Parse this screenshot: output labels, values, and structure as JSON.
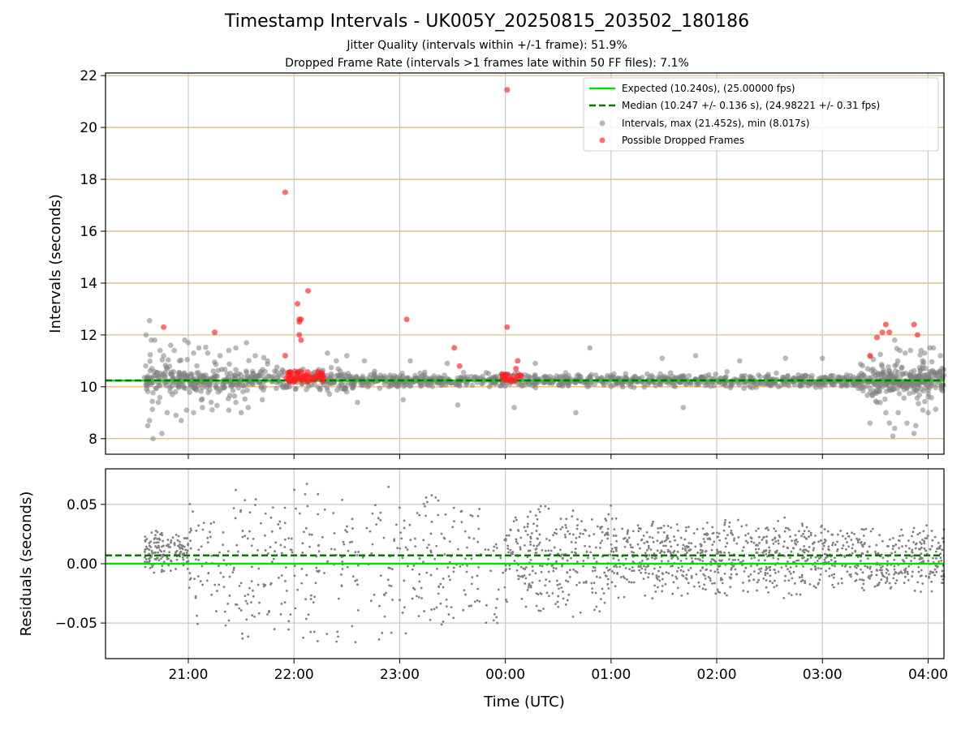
{
  "title": "Timestamp Intervals - UK005Y_20250815_203502_180186",
  "subtitle1": "Jitter Quality (intervals within +/-1 frame): 51.9%",
  "subtitle2": "Dropped Frame Rate (intervals >1 frames late within 50 FF files): 7.1%",
  "colors": {
    "expected": "#00e000",
    "median": "#007a00",
    "intervals": "#808080",
    "dropped": "#ff2020",
    "hgrid_top": "#d4bc6a",
    "grid": "#c8c8c8"
  },
  "chart_data": [
    {
      "type": "scatter",
      "ylabel": "Intervals (seconds)",
      "xlim": [
        "20:13",
        "04:09"
      ],
      "ylim": [
        7.4,
        22.1
      ],
      "yticks": [
        "8",
        "10",
        "12",
        "14",
        "16",
        "18",
        "20",
        "22"
      ],
      "xticks": [
        "21:00",
        "22:00",
        "23:00",
        "00:00",
        "01:00",
        "02:00",
        "03:00",
        "04:00"
      ],
      "expected_value": 10.24,
      "median_value": 10.247,
      "legend": {
        "expected": "Expected (10.240s), (25.00000 fps)",
        "median": "Median (10.247 +/- 0.136 s), (24.98221 +/- 0.31 fps)",
        "intervals": "Intervals, max (21.452s), min (8.017s)",
        "dropped": "Possible Dropped Frames"
      },
      "data_span": [
        "20:35",
        "04:09"
      ],
      "dropped_frames": [
        {
          "t": "20:46",
          "y": 12.3
        },
        {
          "t": "21:15",
          "y": 12.1
        },
        {
          "t": "21:55",
          "y": 17.5
        },
        {
          "t": "21:55",
          "y": 11.2
        },
        {
          "t": "22:02",
          "y": 13.2
        },
        {
          "t": "22:03",
          "y": 12.6
        },
        {
          "t": "22:04",
          "y": 12.6
        },
        {
          "t": "22:03",
          "y": 12.5
        },
        {
          "t": "22:03",
          "y": 12.0
        },
        {
          "t": "22:04",
          "y": 11.8
        },
        {
          "t": "22:08",
          "y": 13.7
        },
        {
          "t": "23:04",
          "y": 12.6
        },
        {
          "t": "23:31",
          "y": 11.5
        },
        {
          "t": "23:34",
          "y": 10.8
        },
        {
          "t": "00:01",
          "y": 21.45
        },
        {
          "t": "00:01",
          "y": 12.3
        },
        {
          "t": "00:07",
          "y": 11.0
        },
        {
          "t": "00:06",
          "y": 10.7
        },
        {
          "t": "03:27",
          "y": 11.2
        },
        {
          "t": "03:31",
          "y": 11.9
        },
        {
          "t": "03:34",
          "y": 12.1
        },
        {
          "t": "03:36",
          "y": 12.4
        },
        {
          "t": "03:38",
          "y": 12.1
        },
        {
          "t": "03:52",
          "y": 12.4
        },
        {
          "t": "03:54",
          "y": 12.0
        }
      ],
      "dropped_clusters": [
        {
          "start": "21:55",
          "end": "22:17",
          "ymin": 10.2,
          "ymax": 10.6,
          "count": 60
        },
        {
          "start": "23:58",
          "end": "00:10",
          "ymin": 10.2,
          "ymax": 10.5,
          "count": 22
        }
      ],
      "interval_outliers": [
        {
          "t": "20:36",
          "y": 12.0
        },
        {
          "t": "20:38",
          "y": 12.55
        },
        {
          "t": "20:39",
          "y": 11.8
        },
        {
          "t": "20:41",
          "y": 11.8
        },
        {
          "t": "20:44",
          "y": 11.4
        },
        {
          "t": "20:46",
          "y": 11.2
        },
        {
          "t": "20:50",
          "y": 11.6
        },
        {
          "t": "20:52",
          "y": 11.4
        },
        {
          "t": "20:55",
          "y": 11.0
        },
        {
          "t": "20:58",
          "y": 11.8
        },
        {
          "t": "21:00",
          "y": 11.7
        },
        {
          "t": "21:03",
          "y": 11.3
        },
        {
          "t": "21:06",
          "y": 11.5
        },
        {
          "t": "21:11",
          "y": 11.3
        },
        {
          "t": "21:18",
          "y": 11.2
        },
        {
          "t": "21:23",
          "y": 11.4
        },
        {
          "t": "21:27",
          "y": 11.5
        },
        {
          "t": "21:33",
          "y": 11.7
        },
        {
          "t": "21:38",
          "y": 11.2
        },
        {
          "t": "21:45",
          "y": 11.0
        },
        {
          "t": "22:19",
          "y": 11.3
        },
        {
          "t": "22:24",
          "y": 11.0
        },
        {
          "t": "22:30",
          "y": 11.2
        },
        {
          "t": "22:40",
          "y": 11.0
        },
        {
          "t": "23:06",
          "y": 11.0
        },
        {
          "t": "23:27",
          "y": 10.9
        },
        {
          "t": "00:17",
          "y": 10.9
        },
        {
          "t": "00:48",
          "y": 11.5
        },
        {
          "t": "01:29",
          "y": 11.1
        },
        {
          "t": "01:48",
          "y": 11.2
        },
        {
          "t": "02:13",
          "y": 11.0
        },
        {
          "t": "02:39",
          "y": 11.1
        },
        {
          "t": "03:00",
          "y": 11.1
        },
        {
          "t": "03:41",
          "y": 11.8
        },
        {
          "t": "03:44",
          "y": 11.4
        },
        {
          "t": "03:47",
          "y": 11.3
        },
        {
          "t": "03:50",
          "y": 11.4
        },
        {
          "t": "03:56",
          "y": 11.4
        },
        {
          "t": "03:58",
          "y": 11.3
        },
        {
          "t": "04:01",
          "y": 11.5
        },
        {
          "t": "04:03",
          "y": 11.5
        },
        {
          "t": "04:07",
          "y": 11.2
        },
        {
          "t": "20:37",
          "y": 8.5
        },
        {
          "t": "20:38",
          "y": 8.7
        },
        {
          "t": "20:40",
          "y": 8.0
        },
        {
          "t": "20:43",
          "y": 9.4
        },
        {
          "t": "20:45",
          "y": 8.2
        },
        {
          "t": "20:48",
          "y": 9.0
        },
        {
          "t": "20:51",
          "y": 9.7
        },
        {
          "t": "20:53",
          "y": 8.9
        },
        {
          "t": "20:56",
          "y": 8.7
        },
        {
          "t": "20:59",
          "y": 9.1
        },
        {
          "t": "21:03",
          "y": 9.0
        },
        {
          "t": "21:08",
          "y": 9.2
        },
        {
          "t": "21:13",
          "y": 9.4
        },
        {
          "t": "21:17",
          "y": 9.8
        },
        {
          "t": "21:23",
          "y": 9.1
        },
        {
          "t": "21:27",
          "y": 9.4
        },
        {
          "t": "21:30",
          "y": 9.0
        },
        {
          "t": "21:34",
          "y": 9.2
        },
        {
          "t": "21:42",
          "y": 9.5
        },
        {
          "t": "22:36",
          "y": 9.4
        },
        {
          "t": "23:02",
          "y": 9.5
        },
        {
          "t": "23:33",
          "y": 9.3
        },
        {
          "t": "00:05",
          "y": 9.2
        },
        {
          "t": "00:40",
          "y": 9.0
        },
        {
          "t": "01:41",
          "y": 9.2
        },
        {
          "t": "03:27",
          "y": 8.6
        },
        {
          "t": "03:31",
          "y": 9.4
        },
        {
          "t": "03:36",
          "y": 9.0
        },
        {
          "t": "03:38",
          "y": 8.6
        },
        {
          "t": "03:40",
          "y": 8.1
        },
        {
          "t": "03:41",
          "y": 8.4
        },
        {
          "t": "03:43",
          "y": 9.0
        },
        {
          "t": "03:48",
          "y": 8.6
        },
        {
          "t": "03:52",
          "y": 8.2
        },
        {
          "t": "03:53",
          "y": 8.5
        },
        {
          "t": "03:57",
          "y": 9.1
        },
        {
          "t": "04:00",
          "y": 9.0
        }
      ]
    },
    {
      "type": "scatter",
      "xlabel": "Time (UTC)",
      "ylabel": "Residuals (seconds)",
      "xlim": [
        "20:13",
        "04:09"
      ],
      "ylim": [
        -0.08,
        0.08
      ],
      "yticks": [
        "0.05",
        "0.00",
        "−0.05"
      ],
      "xticks": [
        "21:00",
        "22:00",
        "23:00",
        "00:00",
        "01:00",
        "02:00",
        "03:00",
        "04:00"
      ],
      "expected_residual": 0.0,
      "median_residual": 0.007,
      "segments": [
        {
          "start": "20:35",
          "end": "21:00",
          "center": 0.01,
          "spread": 0.02,
          "count": 150
        },
        {
          "start": "21:00",
          "end": "22:00",
          "center": 0.0,
          "spread": 0.07,
          "count": 160
        },
        {
          "start": "22:00",
          "end": "23:00",
          "center": 0.0,
          "spread": 0.075,
          "count": 130
        },
        {
          "start": "23:00",
          "end": "00:00",
          "center": 0.0,
          "spread": 0.07,
          "count": 150
        },
        {
          "start": "00:00",
          "end": "01:00",
          "center": 0.005,
          "spread": 0.05,
          "count": 280
        },
        {
          "start": "01:00",
          "end": "02:00",
          "center": 0.005,
          "spread": 0.04,
          "count": 320
        },
        {
          "start": "02:00",
          "end": "03:00",
          "center": 0.005,
          "spread": 0.035,
          "count": 320
        },
        {
          "start": "03:00",
          "end": "04:09",
          "center": 0.005,
          "spread": 0.03,
          "count": 340
        }
      ]
    }
  ]
}
